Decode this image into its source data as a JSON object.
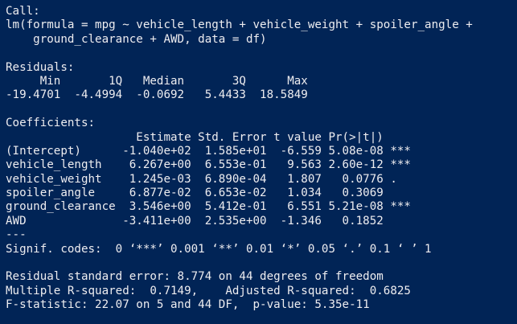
{
  "console": {
    "background": "#012456",
    "text_color": "#eeedf0",
    "lines": [
      "Call:",
      "lm(formula = mpg ~ vehicle_length + vehicle_weight + spoiler_angle +",
      "    ground_clearance + AWD, data = df)",
      "",
      "Residuals:",
      "     Min       1Q   Median       3Q      Max",
      "-19.4701  -4.4994  -0.0692   5.4433  18.5849",
      "",
      "Coefficients:",
      "                   Estimate Std. Error t value Pr(>|t|)    ",
      "(Intercept)      -1.040e+02  1.585e+01  -6.559 5.08e-08 ***",
      "vehicle_length    6.267e+00  6.553e-01   9.563 2.60e-12 ***",
      "vehicle_weight    1.245e-03  6.890e-04   1.807   0.0776 .  ",
      "spoiler_angle     6.877e-02  6.653e-02   1.034   0.3069    ",
      "ground_clearance  3.546e+00  5.412e-01   6.551 5.21e-08 ***",
      "AWD              -3.411e+00  2.535e+00  -1.346   0.1852    ",
      "---",
      "Signif. codes:  0 ‘***’ 0.001 ‘**’ 0.01 ‘*’ 0.05 ‘.’ 0.1 ‘ ’ 1",
      "",
      "Residual standard error: 8.774 on 44 degrees of freedom",
      "Multiple R-squared:  0.7149,\tAdjusted R-squared:  0.6825 ",
      "F-statistic: 22.07 on 5 and 44 DF,  p-value: 5.35e-11"
    ]
  }
}
